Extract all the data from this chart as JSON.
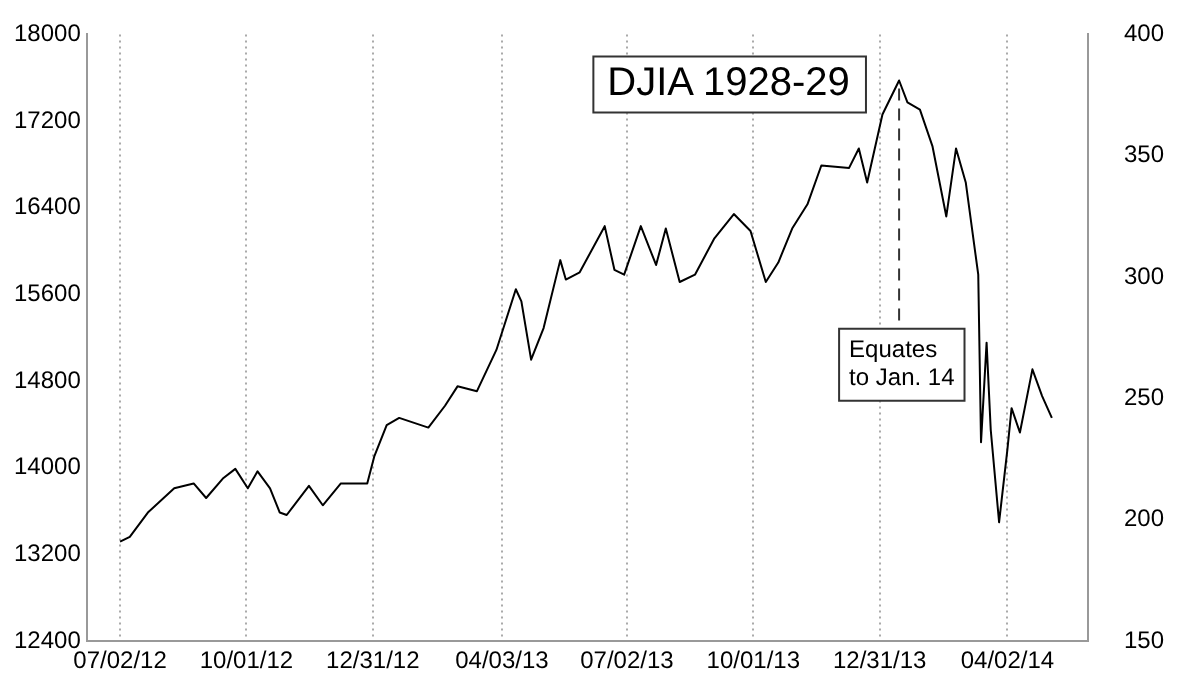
{
  "chart_data": {
    "type": "line",
    "title": "DJIA 1928-29",
    "x": [
      "2012-07-02",
      "2012-07-09",
      "2012-07-22",
      "2012-08-10",
      "2012-08-24",
      "2012-09-02",
      "2012-09-14",
      "2012-09-23",
      "2012-10-02",
      "2012-10-09",
      "2012-10-18",
      "2012-10-25",
      "2012-10-30",
      "2012-11-15",
      "2012-11-25",
      "2012-12-08",
      "2012-12-27",
      "2013-01-01",
      "2013-01-10",
      "2013-01-19",
      "2013-02-09",
      "2013-02-21",
      "2013-03-02",
      "2013-03-16",
      "2013-03-30",
      "2013-04-13",
      "2013-04-17",
      "2013-04-24",
      "2013-05-03",
      "2013-05-15",
      "2013-05-19",
      "2013-05-29",
      "2013-06-16",
      "2013-06-23",
      "2013-06-30",
      "2013-07-12",
      "2013-07-23",
      "2013-07-30",
      "2013-08-09",
      "2013-08-20",
      "2013-09-03",
      "2013-09-17",
      "2013-09-29",
      "2013-10-10",
      "2013-10-19",
      "2013-10-29",
      "2013-11-09",
      "2013-11-19",
      "2013-12-09",
      "2013-12-16",
      "2013-12-22",
      "2014-01-02",
      "2014-01-14",
      "2014-01-20",
      "2014-01-29",
      "2014-02-07",
      "2014-02-17",
      "2014-02-24",
      "2014-03-03",
      "2014-03-12",
      "2014-03-14",
      "2014-03-18",
      "2014-03-21",
      "2014-03-27",
      "2014-04-02",
      "2014-04-05",
      "2014-04-11",
      "2014-04-20",
      "2014-04-27",
      "2014-05-04"
    ],
    "series": [
      {
        "color": "#000000",
        "axis": "y2",
        "values": [
          191,
          193,
          203,
          213,
          215,
          209,
          217,
          221,
          213,
          220,
          213,
          203,
          202,
          214,
          206,
          215,
          215,
          226,
          239,
          242,
          238,
          247,
          255,
          253,
          270,
          295,
          290,
          266,
          279,
          307,
          299,
          302,
          321,
          303,
          301,
          321,
          305,
          320,
          298,
          301,
          316,
          326,
          319,
          298,
          306,
          320,
          330,
          346,
          345,
          353,
          339,
          367,
          381,
          372,
          369,
          354,
          325,
          353,
          339,
          301,
          232,
          273,
          237,
          199,
          229,
          246,
          236,
          262,
          251,
          242
        ]
      }
    ],
    "xlim": [
      "2012-06-08",
      "2014-05-30"
    ],
    "xticks": [
      {
        "value": "2012-07-02",
        "label": "07/02/12"
      },
      {
        "value": "2012-10-01",
        "label": "10/01/12"
      },
      {
        "value": "2012-12-31",
        "label": "12/31/12"
      },
      {
        "value": "2013-04-03",
        "label": "04/03/13"
      },
      {
        "value": "2013-07-02",
        "label": "07/02/13"
      },
      {
        "value": "2013-10-01",
        "label": "10/01/13"
      },
      {
        "value": "2013-12-31",
        "label": "12/31/13"
      },
      {
        "value": "2014-04-02",
        "label": "04/02/14"
      }
    ],
    "ylim": [
      12400,
      18000
    ],
    "yticks": [
      12400,
      13200,
      14000,
      14800,
      15600,
      16400,
      17200,
      18000
    ],
    "y2lim": [
      150,
      400
    ],
    "y2ticks": [
      150,
      200,
      250,
      300,
      350,
      400
    ],
    "ref_lines": [
      {
        "axis": "x",
        "value": "2014-01-14",
        "label": "Equates\nto Jan. 14",
        "color": "#333333",
        "line_style": "dashed"
      }
    ],
    "grid": "x",
    "line_style": "solid",
    "marker": "none",
    "legend": false
  }
}
